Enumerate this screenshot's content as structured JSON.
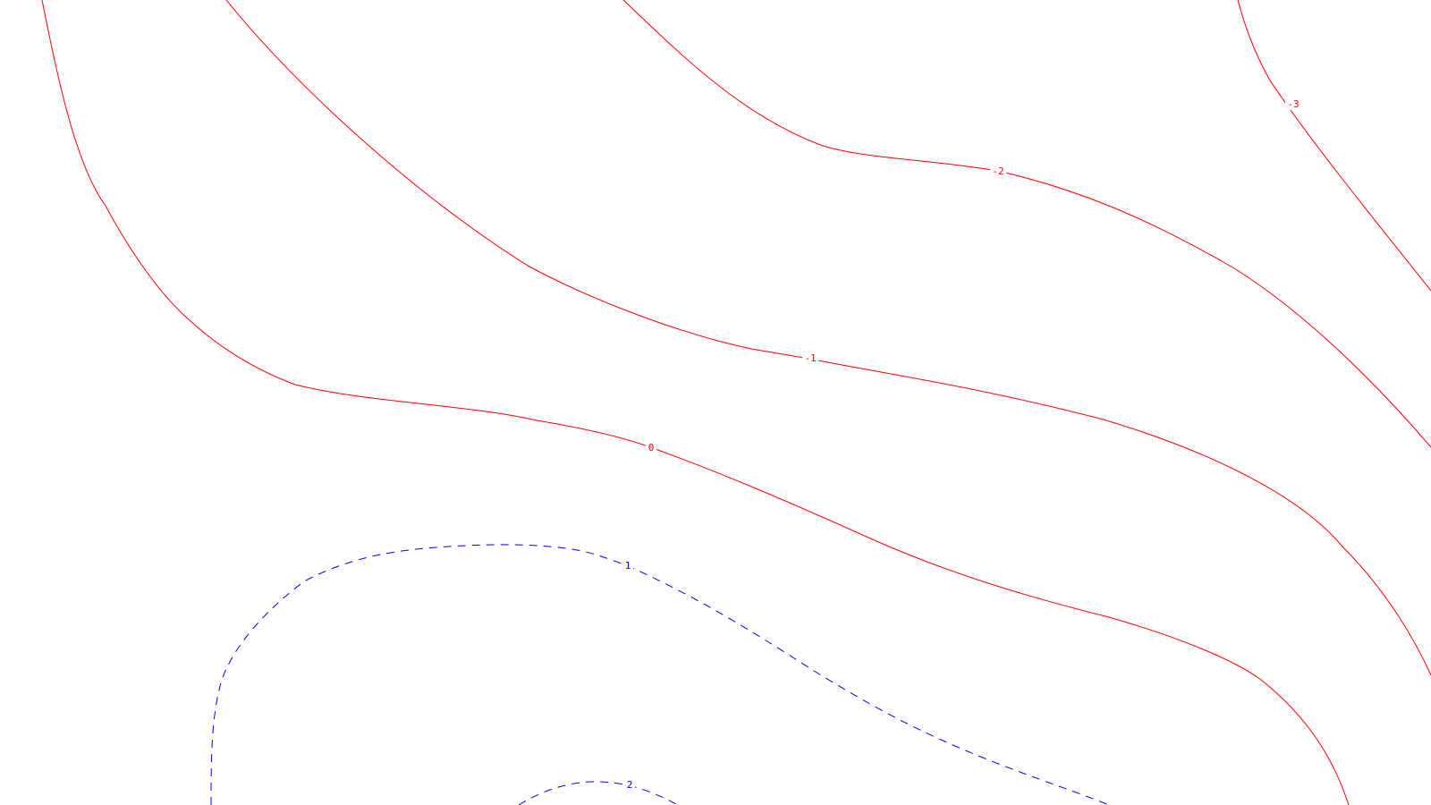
{
  "contours": {
    "colors": {
      "negative": "#ff0000",
      "positive": "#0000ff",
      "background": "#ffffff"
    },
    "levels": [
      {
        "id": "level-3",
        "label": "-3",
        "style": "solid"
      },
      {
        "id": "level-2",
        "label": "-2",
        "style": "solid"
      },
      {
        "id": "level-1",
        "label": "-1",
        "style": "solid"
      },
      {
        "id": "level-0",
        "label": "0",
        "style": "solid"
      },
      {
        "id": "level-p1",
        "label": "1",
        "style": "dashed"
      },
      {
        "id": "level-p2",
        "label": "2",
        "style": "dashed"
      }
    ]
  }
}
